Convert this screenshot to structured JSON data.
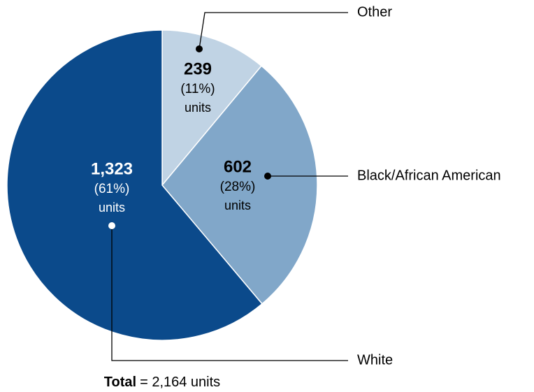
{
  "chart_data": {
    "type": "pie",
    "categories": [
      "Other",
      "Black/African American",
      "White"
    ],
    "values": [
      239,
      602,
      1323
    ],
    "value_labels": [
      "239",
      "602",
      "1,323"
    ],
    "percent_labels": [
      "(11%)",
      "(28%)",
      "(61%)"
    ],
    "unit_label": "units",
    "colors": [
      "#c0d3e4",
      "#81a7c9",
      "#0b4a8b"
    ],
    "total": {
      "label": "Total",
      "text": "= 2,164 units"
    }
  }
}
